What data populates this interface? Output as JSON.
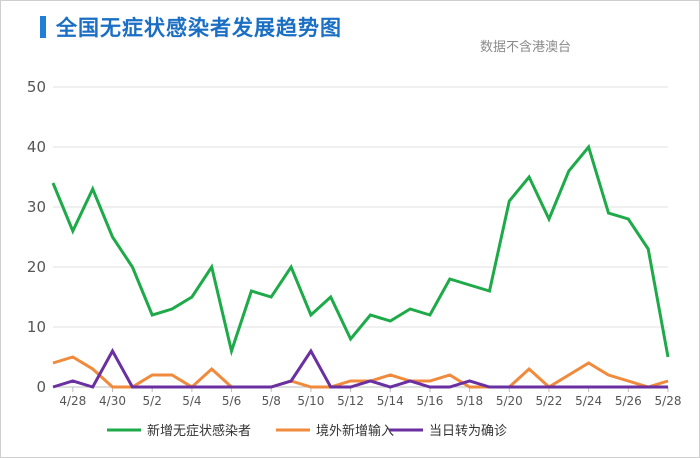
{
  "title": "全国无症状感染者发展趋势图",
  "subtitle": "数据不含港澳台",
  "chart_data": {
    "type": "line",
    "x": [
      "4/27",
      "4/28",
      "4/29",
      "4/30",
      "5/1",
      "5/2",
      "5/3",
      "5/4",
      "5/5",
      "5/6",
      "5/7",
      "5/8",
      "5/9",
      "5/10",
      "5/11",
      "5/12",
      "5/13",
      "5/14",
      "5/15",
      "5/16",
      "5/17",
      "5/18",
      "5/19",
      "5/20",
      "5/21",
      "5/22",
      "5/23",
      "5/24",
      "5/25",
      "5/26",
      "5/27",
      "5/28"
    ],
    "xticks": [
      "4/28",
      "4/30",
      "5/2",
      "5/4",
      "5/6",
      "5/8",
      "5/10",
      "5/12",
      "5/14",
      "5/16",
      "5/18",
      "5/20",
      "5/22",
      "5/24",
      "5/26",
      "5/28"
    ],
    "yticks": [
      0,
      10,
      20,
      30,
      40,
      50
    ],
    "ylim": [
      0,
      50
    ],
    "grid": true,
    "legend_position": "bottom",
    "series": [
      {
        "name": "新增无症状感染者",
        "color": "#1faa4a",
        "values": [
          34,
          26,
          33,
          25,
          20,
          12,
          13,
          15,
          20,
          6,
          16,
          15,
          20,
          12,
          15,
          8,
          12,
          11,
          13,
          12,
          18,
          17,
          16,
          31,
          35,
          28,
          36,
          40,
          29,
          28,
          23,
          5
        ]
      },
      {
        "name": "境外新增输入",
        "color": "#f08a3c",
        "values": [
          4,
          5,
          3,
          0,
          0,
          2,
          2,
          0,
          3,
          0,
          0,
          0,
          1,
          0,
          0,
          1,
          1,
          2,
          1,
          1,
          2,
          0,
          0,
          0,
          3,
          0,
          2,
          4,
          2,
          1,
          0,
          1
        ]
      },
      {
        "name": "当日转为确诊",
        "color": "#6a2fa0",
        "values": [
          0,
          1,
          0,
          6,
          0,
          0,
          0,
          0,
          0,
          0,
          0,
          0,
          1,
          6,
          0,
          0,
          1,
          0,
          1,
          0,
          0,
          1,
          0,
          0,
          0,
          0,
          0,
          0,
          0,
          0,
          0,
          0
        ]
      }
    ]
  }
}
